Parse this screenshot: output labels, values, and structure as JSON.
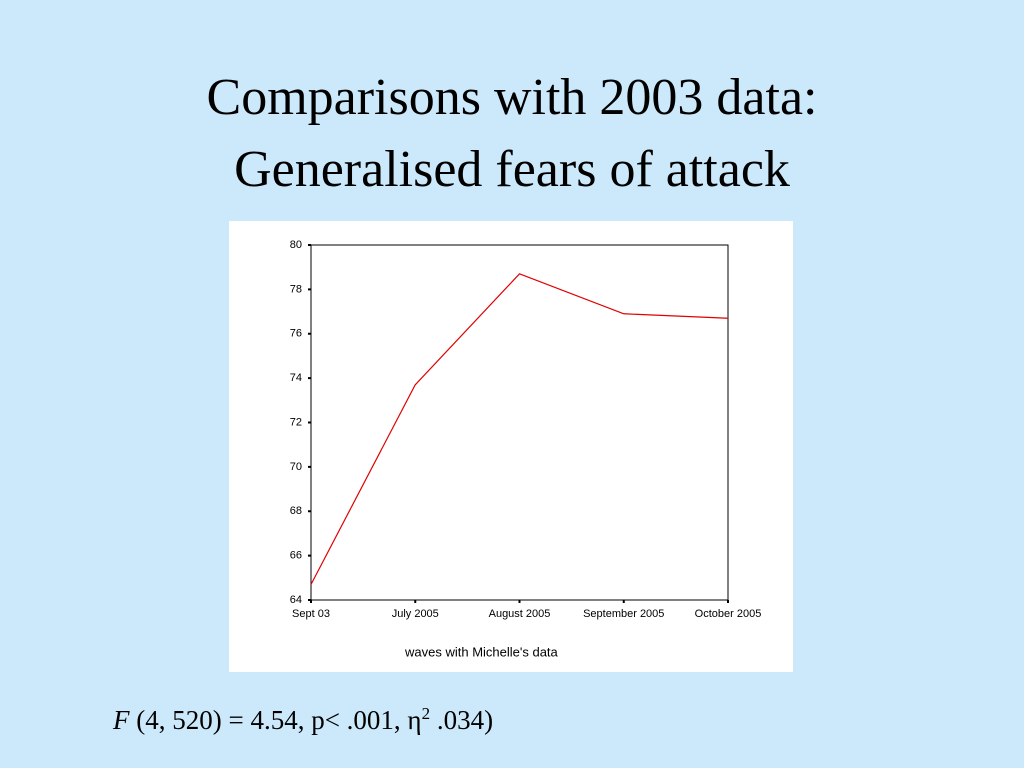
{
  "slide_title": [
    "Comparisons with 2003 data:",
    "Generalised fears of attack"
  ],
  "chart_data": {
    "type": "line",
    "categories": [
      "Sept 03",
      "July 2005",
      "August 2005",
      "September 2005",
      "October 2005"
    ],
    "values": [
      64.7,
      73.7,
      78.7,
      76.9,
      76.7
    ],
    "color": "#e00000",
    "x_label": "waves with Michelle's data",
    "ylim": [
      64,
      80
    ],
    "yticks": [
      64,
      66,
      68,
      70,
      72,
      74,
      76,
      78,
      80
    ]
  },
  "statistic": {
    "symbol": "F",
    "text": " (4, 520) = 4.54, p< .001, η",
    "sup": "2",
    "rest": " .034)"
  }
}
